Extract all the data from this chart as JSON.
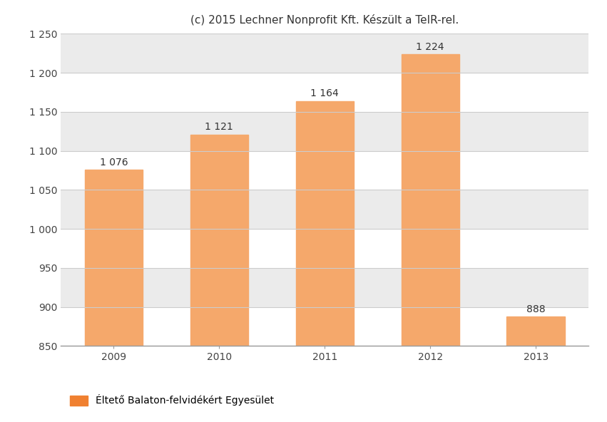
{
  "categories": [
    "2009",
    "2010",
    "2011",
    "2012",
    "2013"
  ],
  "values": [
    1076,
    1121,
    1164,
    1224,
    888
  ],
  "bar_color": "#F5A86B",
  "bar_edge_color": "#F5A86B",
  "title": "(c) 2015 Lechner Nonprofit Kft. Készült a TeIR-rel.",
  "title_fontsize": 11,
  "ylim": [
    850,
    1250
  ],
  "ymin": 850,
  "yticks": [
    850,
    900,
    950,
    1000,
    1050,
    1100,
    1150,
    1200,
    1250
  ],
  "ytick_labels": [
    "850",
    "900",
    "950",
    "1 000",
    "1 050",
    "1 100",
    "1 150",
    "1 200",
    "1 250"
  ],
  "bar_label_values": [
    "1 076",
    "1 121",
    "1 164",
    "1 224",
    "888"
  ],
  "legend_label": "Éltető Balaton-felvidékért Egyesület",
  "legend_color": "#F08030",
  "band_colors": [
    "#FFFFFF",
    "#EBEBEB"
  ],
  "fig_bg_color": "#FFFFFF",
  "grid_color": "#CCCCCC",
  "label_fontsize": 10,
  "tick_fontsize": 10,
  "bar_label_fontsize": 10,
  "bar_width": 0.55
}
